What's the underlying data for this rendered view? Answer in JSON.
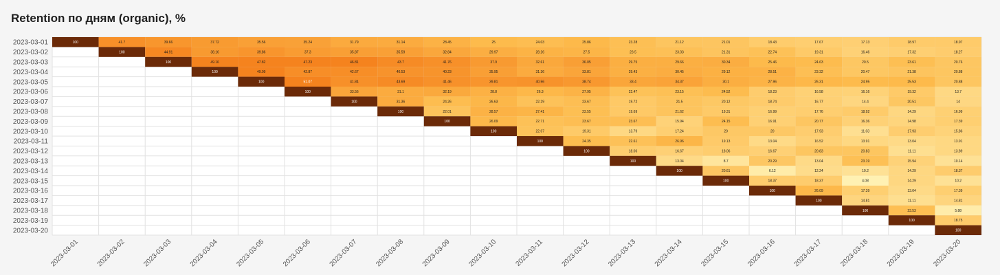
{
  "chart_title": "Retention по дням (organic), %",
  "colors": {
    "background": "#f5f5f5",
    "plot_bg": "#ffffff",
    "grid": "#e2e2e2",
    "scale_low": "#fff1b3",
    "scale_mid": "#fdbb4c",
    "scale_high": "#f5831e",
    "full": "#6b2a08",
    "text_dark": "#1c1c1c",
    "text_light": "#ffffff",
    "axis_text": "#555555"
  },
  "chart_data": {
    "type": "heatmap",
    "title": "Retention по дням (organic), %",
    "rows": [
      "2023-03-01",
      "2023-03-02",
      "2023-03-03",
      "2023-03-04",
      "2023-03-05",
      "2023-03-06",
      "2023-03-07",
      "2023-03-08",
      "2023-03-09",
      "2023-03-10",
      "2023-03-11",
      "2023-03-12",
      "2023-03-13",
      "2023-03-14",
      "2023-03-15",
      "2023-03-16",
      "2023-03-17",
      "2023-03-18",
      "2023-03-19",
      "2023-03-20"
    ],
    "columns": [
      "2023-03-01",
      "2023-03-02",
      "2023-03-03",
      "2023-03-04",
      "2023-03-05",
      "2023-03-06",
      "2023-03-07",
      "2023-03-08",
      "2023-03-09",
      "2023-03-10",
      "2023-03-11",
      "2023-03-12",
      "2023-03-13",
      "2023-03-14",
      "2023-03-15",
      "2023-03-16",
      "2023-03-17",
      "2023-03-18",
      "2023-03-19",
      "2023-03-20"
    ],
    "values": [
      [
        "100",
        "41.7",
        "39.66",
        "37.72",
        "35.56",
        "35.24",
        "31.79",
        "31.14",
        "28.45",
        "25",
        "24.03",
        "25.86",
        "23.28",
        "21.12",
        "21.01",
        "18.43",
        "17.67",
        "17.13",
        "18.97",
        "18.97"
      ],
      [
        null,
        "100",
        "44.91",
        "38.16",
        "39.86",
        "37.3",
        "35.87",
        "35.59",
        "32.84",
        "29.97",
        "28.26",
        "27.5",
        "23.5",
        "23.03",
        "21.31",
        "22.74",
        "19.31",
        "16.46",
        "17.32",
        "18.27"
      ],
      [
        null,
        null,
        "100",
        "49.16",
        "47.82",
        "47.23",
        "46.81",
        "43.7",
        "41.76",
        "37.9",
        "32.61",
        "36.05",
        "29.75",
        "29.66",
        "30.34",
        "25.46",
        "24.63",
        "20.5",
        "23.61",
        "20.76"
      ],
      [
        null,
        null,
        null,
        "100",
        "49.09",
        "42.87",
        "42.67",
        "40.53",
        "40.23",
        "35.95",
        "31.36",
        "33.81",
        "29.43",
        "30.45",
        "29.12",
        "28.51",
        "23.32",
        "20.47",
        "21.38",
        "20.88"
      ],
      [
        null,
        null,
        null,
        null,
        "100",
        "51.07",
        "41.84",
        "43.69",
        "41.46",
        "39.81",
        "40.56",
        "38.74",
        "33.4",
        "34.37",
        "30.1",
        "27.96",
        "26.31",
        "24.95",
        "25.53",
        "20.88"
      ],
      [
        null,
        null,
        null,
        null,
        null,
        "100",
        "33.56",
        "31.1",
        "32.19",
        "28.8",
        "26.3",
        "27.95",
        "22.47",
        "23.15",
        "24.52",
        "18.23",
        "16.58",
        "16.16",
        "19.32",
        "13.7"
      ],
      [
        null,
        null,
        null,
        null,
        null,
        null,
        "100",
        "31.36",
        "24.26",
        "26.63",
        "22.29",
        "23.67",
        "19.72",
        "21.5",
        "20.12",
        "18.74",
        "16.77",
        "14.4",
        "20.51",
        "14"
      ],
      [
        null,
        null,
        null,
        null,
        null,
        null,
        null,
        "100",
        "22.01",
        "28.57",
        "27.41",
        "23.55",
        "19.69",
        "21.62",
        "19.31",
        "16.99",
        "17.76",
        "18.92",
        "14.29",
        "16.99"
      ],
      [
        null,
        null,
        null,
        null,
        null,
        null,
        null,
        null,
        "100",
        "26.09",
        "22.71",
        "23.67",
        "23.67",
        "15.94",
        "24.15",
        "16.91",
        "20.77",
        "16.36",
        "14.98",
        "17.39"
      ],
      [
        null,
        null,
        null,
        null,
        null,
        null,
        null,
        null,
        null,
        "100",
        "22.07",
        "19.31",
        "13.79",
        "17.24",
        "20",
        "20",
        "17.93",
        "11.03",
        "17.93",
        "15.86"
      ],
      [
        null,
        null,
        null,
        null,
        null,
        null,
        null,
        null,
        null,
        null,
        "100",
        "24.35",
        "22.61",
        "26.96",
        "19.13",
        "13.04",
        "16.52",
        "13.91",
        "13.04",
        "13.91"
      ],
      [
        null,
        null,
        null,
        null,
        null,
        null,
        null,
        null,
        null,
        null,
        null,
        "100",
        "18.06",
        "16.67",
        "18.06",
        "16.67",
        "20.83",
        "20.83",
        "11.11",
        "13.89"
      ],
      [
        null,
        null,
        null,
        null,
        null,
        null,
        null,
        null,
        null,
        null,
        null,
        null,
        "100",
        "13.04",
        "8.7",
        "20.29",
        "13.04",
        "23.19",
        "15.94",
        "10.14"
      ],
      [
        null,
        null,
        null,
        null,
        null,
        null,
        null,
        null,
        null,
        null,
        null,
        null,
        null,
        "100",
        "20.61",
        "6.12",
        "12.24",
        "10.2",
        "14.29",
        "18.37"
      ],
      [
        null,
        null,
        null,
        null,
        null,
        null,
        null,
        null,
        null,
        null,
        null,
        null,
        null,
        null,
        "100",
        "18.37",
        "18.37",
        "4.08",
        "14.29",
        "10.2"
      ],
      [
        null,
        null,
        null,
        null,
        null,
        null,
        null,
        null,
        null,
        null,
        null,
        null,
        null,
        null,
        null,
        "100",
        "26.09",
        "17.39",
        "13.04",
        "17.39"
      ],
      [
        null,
        null,
        null,
        null,
        null,
        null,
        null,
        null,
        null,
        null,
        null,
        null,
        null,
        null,
        null,
        null,
        "100",
        "14.81",
        "11.11",
        "14.81"
      ],
      [
        null,
        null,
        null,
        null,
        null,
        null,
        null,
        null,
        null,
        null,
        null,
        null,
        null,
        null,
        null,
        null,
        null,
        "100",
        "23.53",
        "5.88"
      ],
      [
        null,
        null,
        null,
        null,
        null,
        null,
        null,
        null,
        null,
        null,
        null,
        null,
        null,
        null,
        null,
        null,
        null,
        null,
        "100",
        "18.75"
      ],
      [
        null,
        null,
        null,
        null,
        null,
        null,
        null,
        null,
        null,
        null,
        null,
        null,
        null,
        null,
        null,
        null,
        null,
        null,
        null,
        "100"
      ]
    ],
    "xlabel": "",
    "ylabel": "",
    "legend": "none",
    "grid": true
  }
}
